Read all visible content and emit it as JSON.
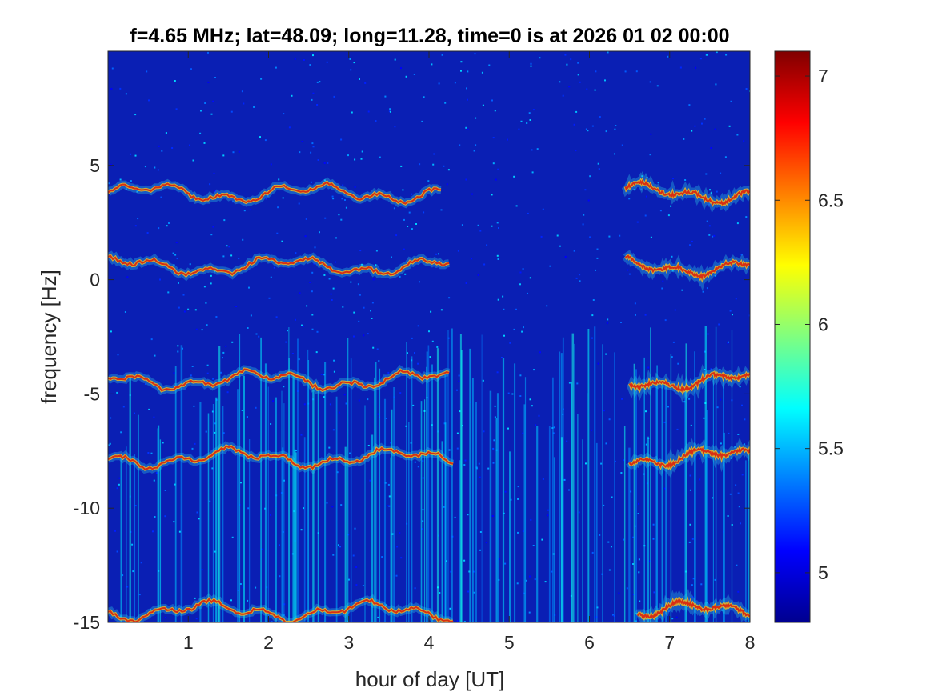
{
  "chart_data": {
    "type": "heatmap",
    "title": "f=4.65 MHz;  lat=48.09; long=11.28, time=0 is at 2026 01 02 00:00",
    "xlabel": "hour of day [UT]",
    "ylabel": "frequency [Hz]",
    "xlim": [
      0,
      8
    ],
    "ylim": [
      -15,
      10
    ],
    "x_ticks": [
      1,
      2,
      3,
      4,
      5,
      6,
      7,
      8
    ],
    "x_tick_labels": [
      "1",
      "2",
      "3",
      "4",
      "5",
      "6",
      "7",
      "8"
    ],
    "y_ticks": [
      5,
      0,
      -5,
      -10,
      -15
    ],
    "y_tick_labels": [
      "5",
      "0",
      "-5",
      "-10",
      "-15"
    ],
    "colormap": "jet",
    "colorbar": {
      "clim": [
        4.8,
        7.1
      ],
      "ticks": [
        7,
        6.5,
        6,
        5.5,
        5
      ],
      "tick_labels": [
        "7",
        "6.5",
        "6",
        "5.5",
        "5"
      ]
    },
    "grid": false,
    "traces": [
      {
        "y": 3.8,
        "segments": [
          [
            0.0,
            4.15
          ],
          [
            6.45,
            8.0
          ]
        ]
      },
      {
        "y": 0.6,
        "segments": [
          [
            0.0,
            4.25
          ],
          [
            6.45,
            8.0
          ]
        ]
      },
      {
        "y": -4.4,
        "segments": [
          [
            0.0,
            4.25
          ],
          [
            6.5,
            8.0
          ]
        ]
      },
      {
        "y": -7.8,
        "segments": [
          [
            0.0,
            4.3
          ],
          [
            6.5,
            8.0
          ]
        ]
      },
      {
        "y": -14.5,
        "segments": [
          [
            0.0,
            4.3
          ],
          [
            6.6,
            8.0
          ]
        ]
      }
    ]
  }
}
